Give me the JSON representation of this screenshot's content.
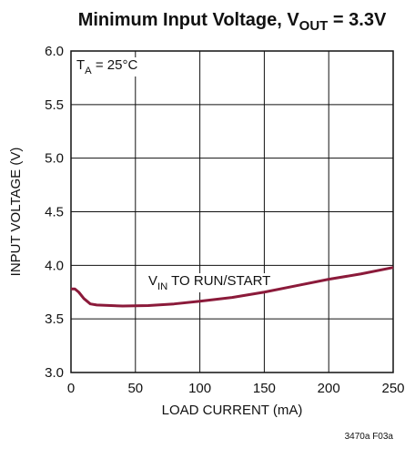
{
  "chart_data": {
    "type": "line",
    "title": [
      "Minimum Input Voltage, V",
      "OUT",
      " = 3.3V"
    ],
    "x_label": "LOAD CURRENT (mA)",
    "y_label": "INPUT VOLTAGE (V)",
    "annotations": [
      [
        "T",
        "A",
        " = 25°C"
      ],
      [
        "V",
        "IN",
        " TO RUN/START"
      ]
    ],
    "footnote": "3470a F03a",
    "x": [
      0,
      3,
      6,
      10,
      15,
      20,
      40,
      60,
      80,
      100,
      125,
      150,
      175,
      200,
      225,
      250
    ],
    "series": [
      {
        "color": "#8b1a3a",
        "values": [
          3.78,
          3.78,
          3.75,
          3.69,
          3.64,
          3.63,
          3.62,
          3.625,
          3.64,
          3.665,
          3.7,
          3.75,
          3.81,
          3.87,
          3.92,
          3.98
        ]
      }
    ],
    "xlim": [
      0,
      250
    ],
    "ylim": [
      3,
      6
    ],
    "xticks": [
      0,
      50,
      100,
      150,
      200,
      250
    ],
    "yticks": [
      {
        "value": 3,
        "label": "3.0"
      },
      3.5,
      {
        "value": 4,
        "label": "4.0"
      },
      4.5,
      {
        "value": 5,
        "label": "5.0"
      },
      5.5,
      {
        "value": 6,
        "label": "6.0"
      }
    ],
    "grid": true
  }
}
